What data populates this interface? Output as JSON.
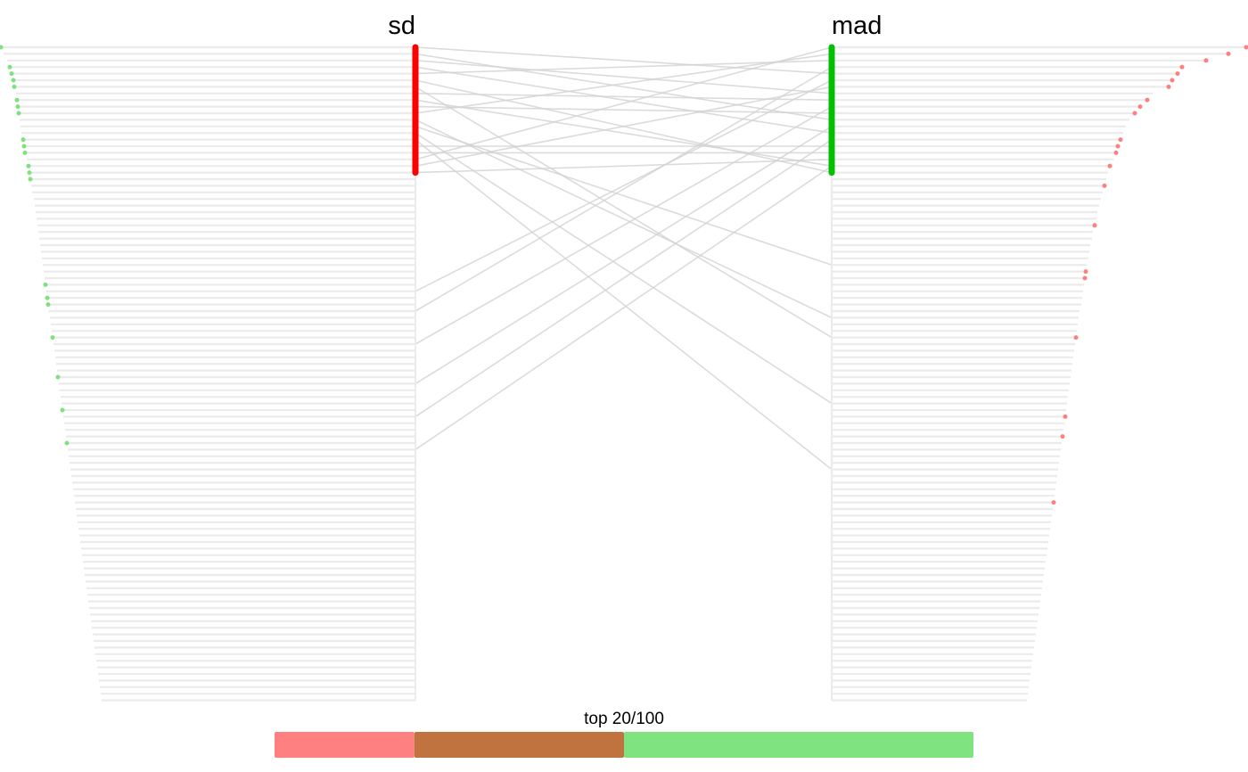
{
  "chart_data": {
    "type": "rank-comparison",
    "n_features": 100,
    "top_n": 20,
    "columns": [
      {
        "name": "sd",
        "color": "#ff0000"
      },
      {
        "name": "mad",
        "color": "#00c000"
      }
    ],
    "colors": {
      "bar": "#ebebeb",
      "link": "#d2d2d2",
      "dot_left": "#7ee27e",
      "dot_right": "#ff7f7f",
      "legend_left": "#ff8080",
      "legend_mid": "#c0733e",
      "legend_right": "#7fe47f"
    },
    "left_bar_lengths": [
      465,
      462,
      458,
      455,
      453,
      451,
      450,
      448,
      447,
      446,
      445,
      444,
      443,
      442,
      440,
      439,
      438,
      436,
      434,
      433,
      432,
      431,
      430,
      428,
      427,
      426,
      425,
      424,
      423,
      422,
      421,
      420,
      419,
      418,
      417,
      416,
      415,
      414,
      413,
      412,
      411,
      410,
      409,
      408,
      407,
      406,
      405,
      404,
      403,
      402,
      401,
      400,
      399,
      398,
      397,
      396,
      395,
      394,
      393,
      392,
      391,
      390,
      389,
      388,
      387,
      386,
      385,
      384,
      383,
      382,
      381,
      380,
      379,
      378,
      377,
      376,
      375,
      374,
      373,
      372,
      371,
      370,
      369,
      368,
      367,
      366,
      365,
      364,
      363,
      362,
      361,
      360,
      359,
      358,
      357,
      356,
      355,
      354,
      353,
      352
    ],
    "right_bar_lengths": [
      465,
      445,
      420,
      393,
      388,
      382,
      378,
      360,
      354,
      346,
      340,
      334,
      330,
      327,
      324,
      321,
      319,
      316,
      312,
      310,
      308,
      306,
      304,
      302,
      300,
      298,
      297,
      295,
      293,
      292,
      290,
      289,
      288,
      286,
      285,
      284,
      283,
      282,
      281,
      280,
      278,
      277,
      276,
      275,
      274,
      273,
      272,
      271,
      270,
      269,
      268,
      267,
      266,
      265,
      264,
      263,
      262,
      261,
      260,
      259,
      258,
      257,
      256,
      255,
      254,
      253,
      252,
      251,
      250,
      249,
      248,
      247,
      246,
      245,
      244,
      243,
      242,
      241,
      240,
      239,
      238,
      237,
      236,
      235,
      234,
      233,
      232,
      231,
      230,
      229,
      228,
      227,
      226,
      225,
      224,
      223,
      222,
      221,
      220,
      219
    ],
    "left_dot_ranks": [
      1,
      4,
      5,
      6,
      7,
      9,
      10,
      11,
      15,
      16,
      17,
      19,
      20,
      21,
      37,
      39,
      40,
      45,
      51,
      56,
      61
    ],
    "right_dot_ranks": [
      1,
      2,
      3,
      4,
      5,
      6,
      7,
      9,
      10,
      11,
      15,
      16,
      17,
      19,
      22,
      28,
      35,
      36,
      45,
      57,
      60,
      70
    ],
    "links": [
      {
        "from": 1,
        "to": 5
      },
      {
        "from": 2,
        "to": 12
      },
      {
        "from": 3,
        "to": 8
      },
      {
        "from": 4,
        "to": 14
      },
      {
        "from": 5,
        "to": 3
      },
      {
        "from": 6,
        "to": 20
      },
      {
        "from": 7,
        "to": 45
      },
      {
        "from": 8,
        "to": 9
      },
      {
        "from": 9,
        "to": 19
      },
      {
        "from": 10,
        "to": 11
      },
      {
        "from": 11,
        "to": 2
      },
      {
        "from": 12,
        "to": 42
      },
      {
        "from": 13,
        "to": 34
      },
      {
        "from": 14,
        "to": 55
      },
      {
        "from": 15,
        "to": 65
      },
      {
        "from": 16,
        "to": 16
      },
      {
        "from": 17,
        "to": 17
      },
      {
        "from": 18,
        "to": 1
      },
      {
        "from": 19,
        "to": 7
      },
      {
        "from": 20,
        "to": 18
      },
      {
        "from": 38,
        "to": 6
      },
      {
        "from": 41,
        "to": 4
      },
      {
        "from": 46,
        "to": 10
      },
      {
        "from": 52,
        "to": 13
      },
      {
        "from": 57,
        "to": 15
      },
      {
        "from": 62,
        "to": 19
      }
    ],
    "legend": {
      "label": "top 20/100",
      "segments": [
        0.2,
        0.3,
        0.5
      ]
    }
  }
}
